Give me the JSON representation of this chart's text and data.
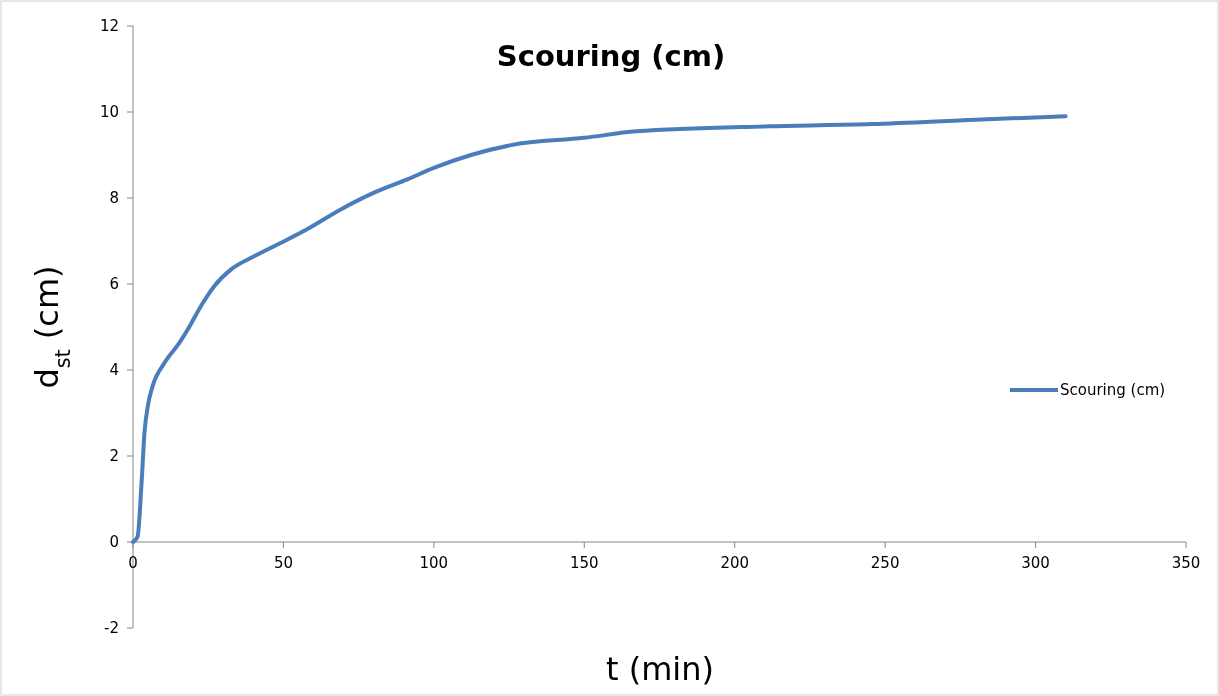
{
  "chart_data": {
    "type": "line",
    "title": "Scouring (cm)",
    "xlabel": "t (min)",
    "ylabel": "d$_{st}$ (cm)",
    "xlim": [
      0,
      350
    ],
    "xticks": [
      0,
      50,
      100,
      150,
      200,
      250,
      300,
      350
    ],
    "ylim": [
      -2,
      12
    ],
    "yticks": [
      -2,
      0,
      2,
      4,
      6,
      8,
      10,
      12
    ],
    "legend": "right",
    "grid": false,
    "marker": "none",
    "line_style": "solid",
    "series": [
      {
        "name": "Scouring (cm)",
        "color": "#4a7ebb",
        "x": [
          0,
          1.5,
          2.9,
          3.8,
          4.9,
          6.5,
          10.4,
          15.4,
          18.2,
          22.6,
          27,
          32.6,
          40.4,
          49.2,
          58,
          69.2,
          80.3,
          91.4,
          100,
          125.7,
          150,
          167.3,
          212.2,
          245.5,
          280,
          310
        ],
        "values": [
          0,
          0.12,
          1.44,
          2.53,
          3.15,
          3.62,
          4.16,
          4.63,
          4.94,
          5.49,
          5.95,
          6.34,
          6.65,
          6.96,
          7.28,
          7.74,
          8.13,
          8.44,
          8.7,
          9.23,
          9.4,
          9.55,
          9.67,
          9.72,
          9.82,
          9.9
        ]
      }
    ]
  }
}
